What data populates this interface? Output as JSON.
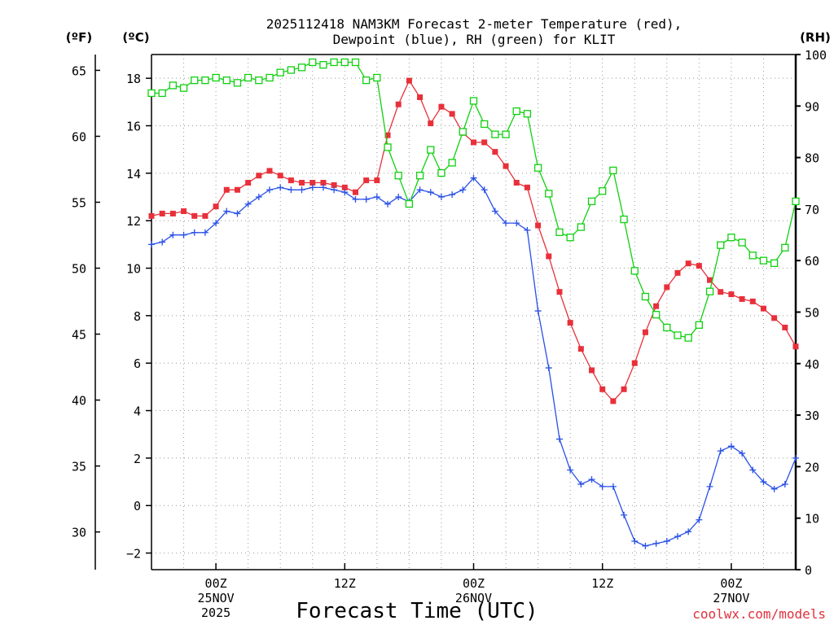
{
  "chart_data": {
    "type": "line",
    "title_line1": "2025112418 NAM3KM Forecast 2-meter Temperature (red),",
    "title_line2": "Dewpoint (blue), RH (green) for KLIT",
    "xlabel": "Forecast Time (UTC)",
    "credit": "coolwx.com/models",
    "units": {
      "fahrenheit": "(ºF)",
      "celsius": "(ºC)",
      "rh": "(RH)"
    },
    "x_range_hours": [
      -6,
      54
    ],
    "y_celsius_range": [
      -2.7,
      19.0
    ],
    "y_fahrenheit_range": [
      27.14,
      66.2
    ],
    "y_rh_range": [
      0,
      100
    ],
    "x_ticks": [
      {
        "hour": 0,
        "lines": [
          "00Z",
          "25NOV",
          "2025"
        ]
      },
      {
        "hour": 12,
        "lines": [
          "12Z"
        ]
      },
      {
        "hour": 24,
        "lines": [
          "00Z",
          "26NOV"
        ]
      },
      {
        "hour": 36,
        "lines": [
          "12Z"
        ]
      },
      {
        "hour": 48,
        "lines": [
          "00Z",
          "27NOV"
        ]
      }
    ],
    "y_celsius_ticks": [
      "-2",
      "0",
      "2",
      "4",
      "6",
      "8",
      "10",
      "12",
      "14",
      "16",
      "18"
    ],
    "y_fahrenheit_ticks": [
      "30",
      "35",
      "40",
      "45",
      "50",
      "55",
      "60",
      "65"
    ],
    "y_rh_ticks": [
      "0",
      "10",
      "20",
      "30",
      "40",
      "50",
      "60",
      "70",
      "80",
      "90",
      "100"
    ],
    "series": [
      {
        "name": "Temperature",
        "unit": "celsius",
        "color": "#e8303a",
        "marker": "filled-square",
        "x": [
          -6,
          -5,
          -4,
          -3,
          -2,
          -1,
          0,
          1,
          2,
          3,
          4,
          5,
          6,
          7,
          8,
          9,
          10,
          11,
          12,
          13,
          14,
          15,
          16,
          17,
          18,
          19,
          20,
          21,
          22,
          23,
          24,
          25,
          26,
          27,
          28,
          29,
          30,
          31,
          32,
          33,
          34,
          35,
          36,
          37,
          38,
          39,
          40,
          41,
          42,
          43,
          44,
          45,
          46,
          47,
          48,
          49,
          50,
          51,
          52,
          53,
          54
        ],
        "values": [
          12.2,
          12.3,
          12.3,
          12.4,
          12.2,
          12.2,
          12.6,
          13.3,
          13.3,
          13.6,
          13.9,
          14.1,
          13.9,
          13.7,
          13.6,
          13.6,
          13.6,
          13.5,
          13.4,
          13.2,
          13.7,
          13.7,
          15.6,
          16.9,
          17.9,
          17.2,
          16.1,
          16.8,
          16.5,
          15.7,
          15.3,
          15.3,
          14.9,
          14.3,
          13.6,
          13.4,
          11.8,
          10.5,
          9.0,
          7.7,
          6.6,
          5.7,
          4.9,
          4.4,
          4.9,
          6.0,
          7.3,
          8.4,
          9.2,
          9.8,
          10.2,
          10.1,
          9.5,
          9.0,
          8.9,
          8.7,
          8.6,
          8.3,
          7.9,
          7.5,
          6.7
        ]
      },
      {
        "name": "Dewpoint",
        "unit": "celsius",
        "color": "#2850e6",
        "marker": "plus",
        "x": [
          -6,
          -5,
          -4,
          -3,
          -2,
          -1,
          0,
          1,
          2,
          3,
          4,
          5,
          6,
          7,
          8,
          9,
          10,
          11,
          12,
          13,
          14,
          15,
          16,
          17,
          18,
          19,
          20,
          21,
          22,
          23,
          24,
          25,
          26,
          27,
          28,
          29,
          30,
          31,
          32,
          33,
          34,
          35,
          36,
          37,
          38,
          39,
          40,
          41,
          42,
          43,
          44,
          45,
          46,
          47,
          48,
          49,
          50,
          51,
          52,
          53,
          54
        ],
        "values": [
          11.0,
          11.1,
          11.4,
          11.4,
          11.5,
          11.5,
          11.9,
          12.4,
          12.3,
          12.7,
          13.0,
          13.3,
          13.4,
          13.3,
          13.3,
          13.4,
          13.4,
          13.3,
          13.2,
          12.9,
          12.9,
          13.0,
          12.7,
          13.0,
          12.8,
          13.3,
          13.2,
          13.0,
          13.1,
          13.3,
          13.8,
          13.3,
          12.4,
          11.9,
          11.9,
          11.6,
          8.2,
          5.8,
          2.8,
          1.5,
          0.9,
          1.1,
          0.8,
          0.8,
          -0.4,
          -1.5,
          -1.7,
          -1.6,
          -1.5,
          -1.3,
          -1.1,
          -0.6,
          0.8,
          2.3,
          2.5,
          2.2,
          1.5,
          1.0,
          0.7,
          0.9,
          2.0
        ]
      },
      {
        "name": "RH",
        "unit": "rh",
        "color": "#10d010",
        "marker": "open-square",
        "x": [
          -6,
          -5,
          -4,
          -3,
          -2,
          -1,
          0,
          1,
          2,
          3,
          4,
          5,
          6,
          7,
          8,
          9,
          10,
          11,
          12,
          13,
          14,
          15,
          16,
          17,
          18,
          19,
          20,
          21,
          22,
          23,
          24,
          25,
          26,
          27,
          28,
          29,
          30,
          31,
          32,
          33,
          34,
          35,
          36,
          37,
          38,
          39,
          40,
          41,
          42,
          43,
          44,
          45,
          46,
          47,
          48,
          49,
          50,
          51,
          52,
          53,
          54
        ],
        "values": [
          92.5,
          92.5,
          94,
          93.5,
          95,
          95,
          95.5,
          95,
          94.5,
          95.5,
          95,
          95.5,
          96.5,
          97,
          97.5,
          98.5,
          98,
          98.5,
          98.5,
          98.5,
          95,
          95.5,
          82,
          76.5,
          71,
          76.5,
          81.5,
          77,
          79,
          85,
          91,
          86.5,
          84.5,
          84.5,
          89,
          88.5,
          78,
          73,
          65.5,
          64.5,
          66.5,
          71.5,
          73.5,
          77.5,
          68,
          58,
          53,
          49.5,
          47,
          45.5,
          45,
          47.5,
          54,
          63,
          64.5,
          63.5,
          61,
          60,
          59.5,
          62.5,
          71.5
        ]
      }
    ]
  }
}
